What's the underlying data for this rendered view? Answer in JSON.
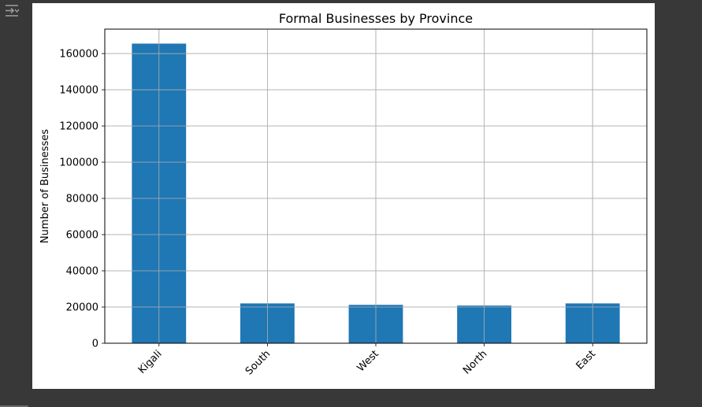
{
  "toolbar": {
    "icon": "output-toggle-icon"
  },
  "chart_data": {
    "type": "bar",
    "title": "Formal Businesses by Province",
    "xlabel": "",
    "ylabel": "Number of Businesses",
    "categories": [
      "Kigali",
      "South",
      "West",
      "North",
      "East"
    ],
    "values": [
      165500,
      22000,
      21200,
      20800,
      22000
    ],
    "ylim": [
      0,
      173500
    ],
    "yticks": [
      0,
      20000,
      40000,
      60000,
      80000,
      100000,
      120000,
      140000,
      160000
    ],
    "grid": true,
    "bar_color": "#1f77b4",
    "grid_color": "#b0b0b0"
  }
}
